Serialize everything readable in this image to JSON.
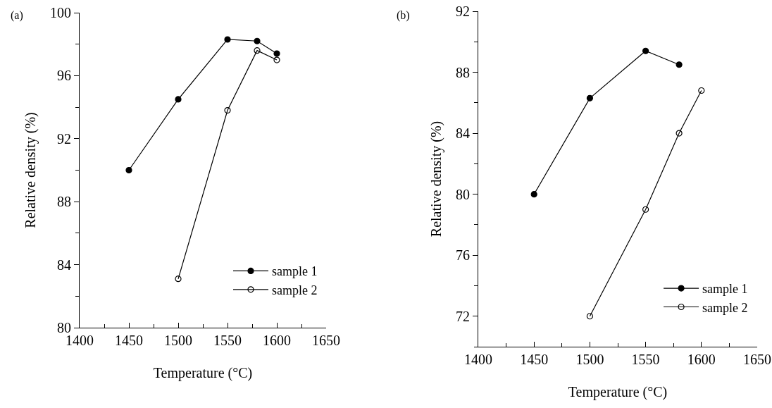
{
  "chart_data": [
    {
      "type": "line",
      "title": "(a)",
      "xlabel": "Temperature (°C)",
      "ylabel": "Relative density (%)",
      "x": [
        1450,
        1500,
        1550,
        1580,
        1600
      ],
      "series": [
        {
          "name": "sample 1",
          "color": "#000000",
          "marker": "circle",
          "values": [
            90.0,
            94.5,
            98.3,
            98.2,
            97.4
          ]
        },
        {
          "name": "sample 2",
          "color": "#000000",
          "marker": "circle-open",
          "x": [
            1500,
            1550,
            1580,
            1600
          ],
          "values": [
            83.1,
            93.8,
            97.6,
            97.0
          ]
        }
      ],
      "xlim": [
        1400,
        1650
      ],
      "xticks": [
        1400,
        1450,
        1500,
        1550,
        1600,
        1650
      ],
      "ylim": [
        80,
        100
      ],
      "yticks": [
        80,
        84,
        88,
        92,
        96,
        100
      ],
      "grid": false,
      "legend": "bottom right",
      "line_style": "solid"
    },
    {
      "type": "line",
      "title": "(b)",
      "xlabel": "Temperature (°C)",
      "ylabel": "Relative density (%)",
      "x": [
        1450,
        1500,
        1550,
        1580
      ],
      "series": [
        {
          "name": "sample 1",
          "color": "#000000",
          "marker": "circle",
          "values": [
            80.0,
            86.3,
            89.4,
            88.5
          ]
        },
        {
          "name": "sample 2",
          "color": "#000000",
          "marker": "circle-open",
          "x": [
            1500,
            1550,
            1580,
            1600
          ],
          "values": [
            72.0,
            79.0,
            84.0,
            86.8
          ]
        }
      ],
      "xlim": [
        1400,
        1650
      ],
      "xticks": [
        1400,
        1450,
        1500,
        1550,
        1600,
        1650
      ],
      "ylim": [
        70,
        92
      ],
      "yticks": [
        72,
        76,
        80,
        84,
        88,
        92
      ],
      "grid": false,
      "legend": "bottom right",
      "line_style": "solid"
    }
  ]
}
